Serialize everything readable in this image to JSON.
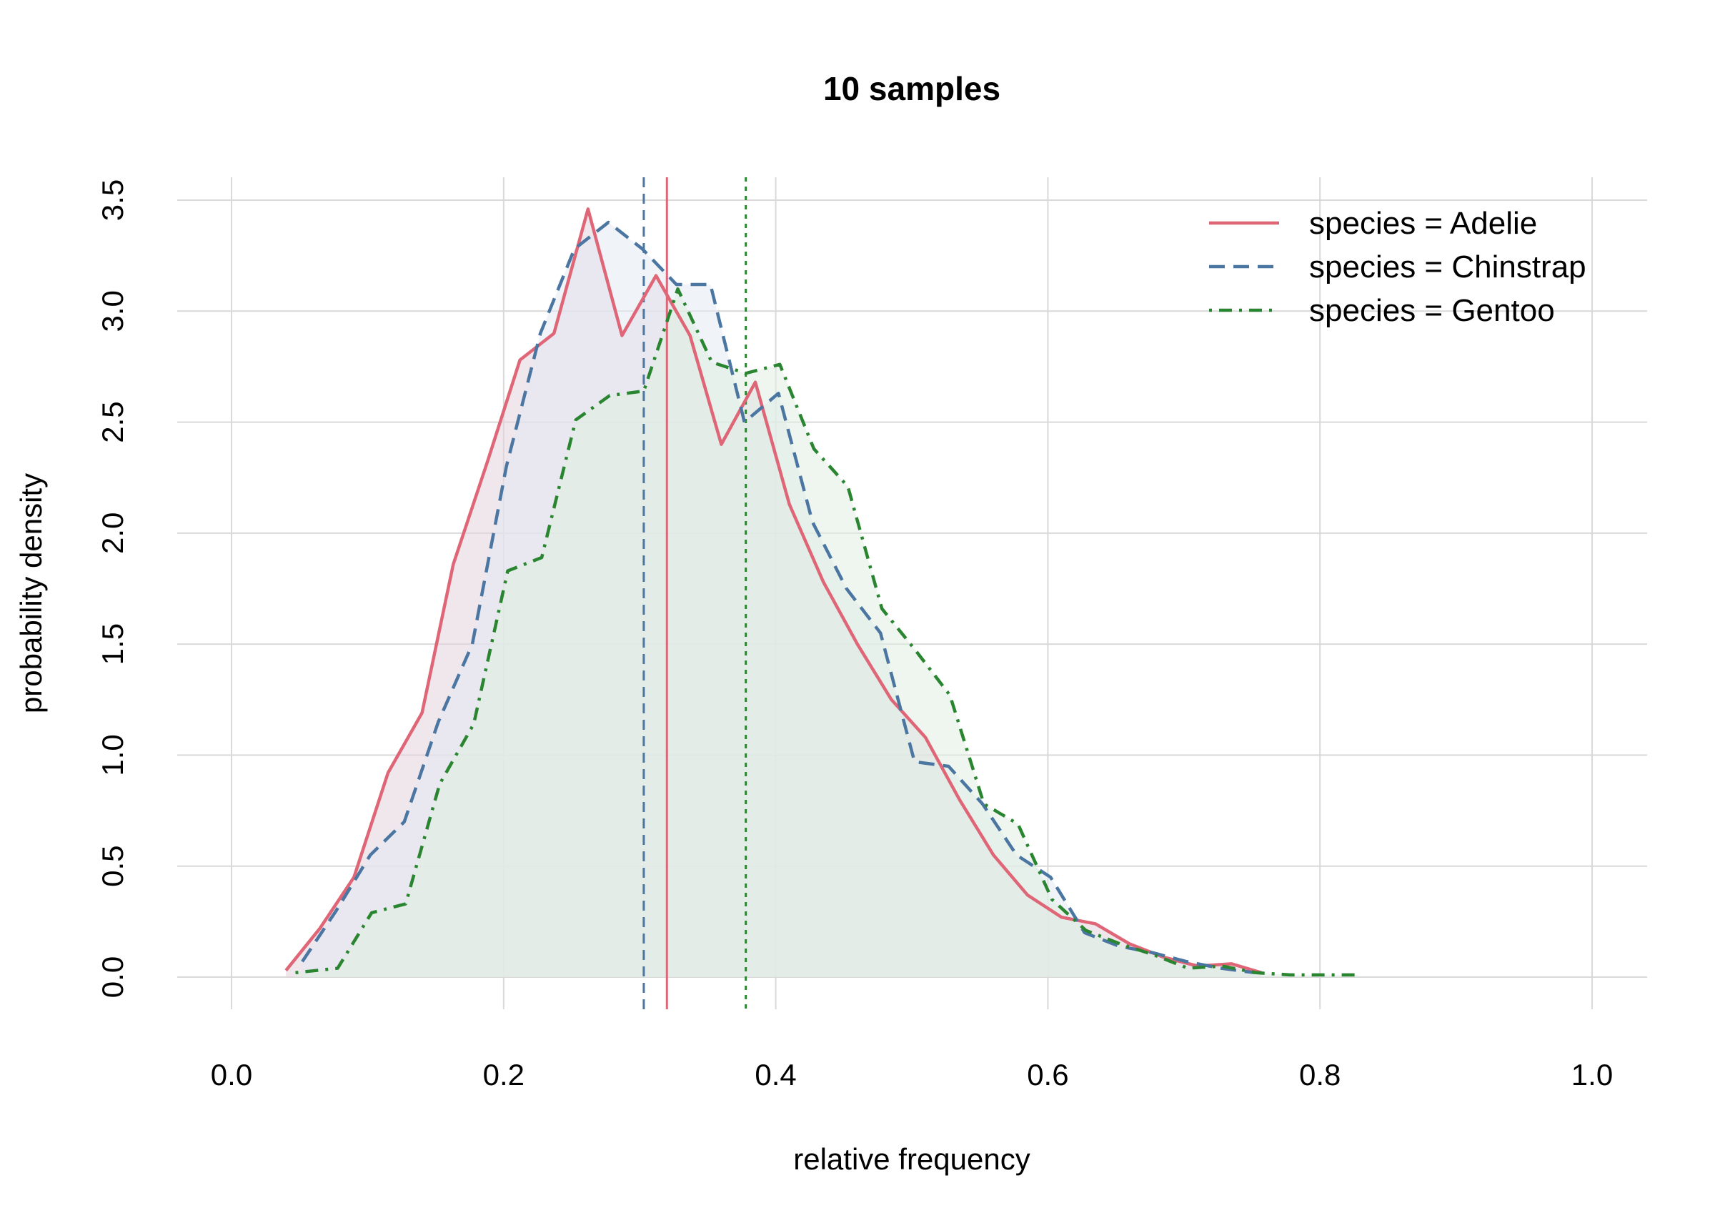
{
  "chart_data": {
    "type": "area",
    "title": "10 samples",
    "xlabel": "relative frequency",
    "ylabel": "probability density",
    "xlim": [
      0.0,
      1.0
    ],
    "ylim": [
      0.0,
      3.5
    ],
    "x_ticks": [
      0.0,
      0.2,
      0.4,
      0.6,
      0.8,
      1.0
    ],
    "x_tick_labels": [
      "0.0",
      "0.2",
      "0.4",
      "0.6",
      "0.8",
      "1.0"
    ],
    "y_ticks": [
      0.0,
      0.5,
      1.0,
      1.5,
      2.0,
      2.5,
      3.0,
      3.5
    ],
    "y_tick_labels": [
      "0.0",
      "0.5",
      "1.0",
      "1.5",
      "2.0",
      "2.5",
      "3.0",
      "3.5"
    ],
    "grid": true,
    "legend_position": "top-right",
    "series": [
      {
        "name": "species = Adelie",
        "color": "#df6677",
        "fill": "#e3d4df",
        "dash": "solid",
        "mean": 0.32,
        "points": [
          [
            0.04,
            0.03
          ],
          [
            0.065,
            0.22
          ],
          [
            0.09,
            0.45
          ],
          [
            0.115,
            0.92
          ],
          [
            0.14,
            1.19
          ],
          [
            0.163,
            1.86
          ],
          [
            0.188,
            2.32
          ],
          [
            0.212,
            2.78
          ],
          [
            0.237,
            2.9
          ],
          [
            0.262,
            3.46
          ],
          [
            0.287,
            2.89
          ],
          [
            0.312,
            3.16
          ],
          [
            0.337,
            2.89
          ],
          [
            0.36,
            2.4
          ],
          [
            0.385,
            2.68
          ],
          [
            0.41,
            2.13
          ],
          [
            0.435,
            1.78
          ],
          [
            0.46,
            1.5
          ],
          [
            0.485,
            1.25
          ],
          [
            0.51,
            1.08
          ],
          [
            0.535,
            0.8
          ],
          [
            0.56,
            0.55
          ],
          [
            0.585,
            0.37
          ],
          [
            0.61,
            0.27
          ],
          [
            0.635,
            0.24
          ],
          [
            0.66,
            0.15
          ],
          [
            0.685,
            0.09
          ],
          [
            0.71,
            0.05
          ],
          [
            0.735,
            0.06
          ],
          [
            0.757,
            0.02
          ]
        ]
      },
      {
        "name": "species = Chinstrap",
        "color": "#4a76a1",
        "fill": "#e3e9f2",
        "dash": "dashed",
        "mean": 0.303,
        "points": [
          [
            0.052,
            0.07
          ],
          [
            0.077,
            0.3
          ],
          [
            0.102,
            0.55
          ],
          [
            0.127,
            0.7
          ],
          [
            0.152,
            1.15
          ],
          [
            0.177,
            1.5
          ],
          [
            0.202,
            2.3
          ],
          [
            0.227,
            2.9
          ],
          [
            0.252,
            3.28
          ],
          [
            0.277,
            3.4
          ],
          [
            0.302,
            3.28
          ],
          [
            0.327,
            3.12
          ],
          [
            0.352,
            3.12
          ],
          [
            0.377,
            2.5
          ],
          [
            0.402,
            2.63
          ],
          [
            0.427,
            2.05
          ],
          [
            0.452,
            1.75
          ],
          [
            0.477,
            1.55
          ],
          [
            0.502,
            0.97
          ],
          [
            0.527,
            0.95
          ],
          [
            0.552,
            0.78
          ],
          [
            0.577,
            0.55
          ],
          [
            0.602,
            0.45
          ],
          [
            0.627,
            0.2
          ],
          [
            0.652,
            0.14
          ],
          [
            0.677,
            0.11
          ],
          [
            0.702,
            0.07
          ],
          [
            0.727,
            0.04
          ],
          [
            0.752,
            0.02
          ]
        ]
      },
      {
        "name": "species = Gentoo",
        "color": "#2a8530",
        "fill": "#e0efe1",
        "dash": "dashdot",
        "mean": 0.378,
        "points": [
          [
            0.047,
            0.02
          ],
          [
            0.078,
            0.04
          ],
          [
            0.103,
            0.29
          ],
          [
            0.128,
            0.33
          ],
          [
            0.153,
            0.87
          ],
          [
            0.178,
            1.14
          ],
          [
            0.203,
            1.83
          ],
          [
            0.228,
            1.89
          ],
          [
            0.253,
            2.51
          ],
          [
            0.278,
            2.62
          ],
          [
            0.303,
            2.64
          ],
          [
            0.328,
            3.1
          ],
          [
            0.353,
            2.77
          ],
          [
            0.378,
            2.72
          ],
          [
            0.403,
            2.76
          ],
          [
            0.428,
            2.38
          ],
          [
            0.453,
            2.21
          ],
          [
            0.478,
            1.66
          ],
          [
            0.503,
            1.47
          ],
          [
            0.528,
            1.27
          ],
          [
            0.553,
            0.78
          ],
          [
            0.578,
            0.69
          ],
          [
            0.603,
            0.35
          ],
          [
            0.628,
            0.21
          ],
          [
            0.653,
            0.15
          ],
          [
            0.678,
            0.1
          ],
          [
            0.703,
            0.04
          ],
          [
            0.728,
            0.05
          ],
          [
            0.753,
            0.02
          ],
          [
            0.778,
            0.01
          ],
          [
            0.803,
            0.01
          ],
          [
            0.828,
            0.01
          ]
        ]
      }
    ]
  }
}
